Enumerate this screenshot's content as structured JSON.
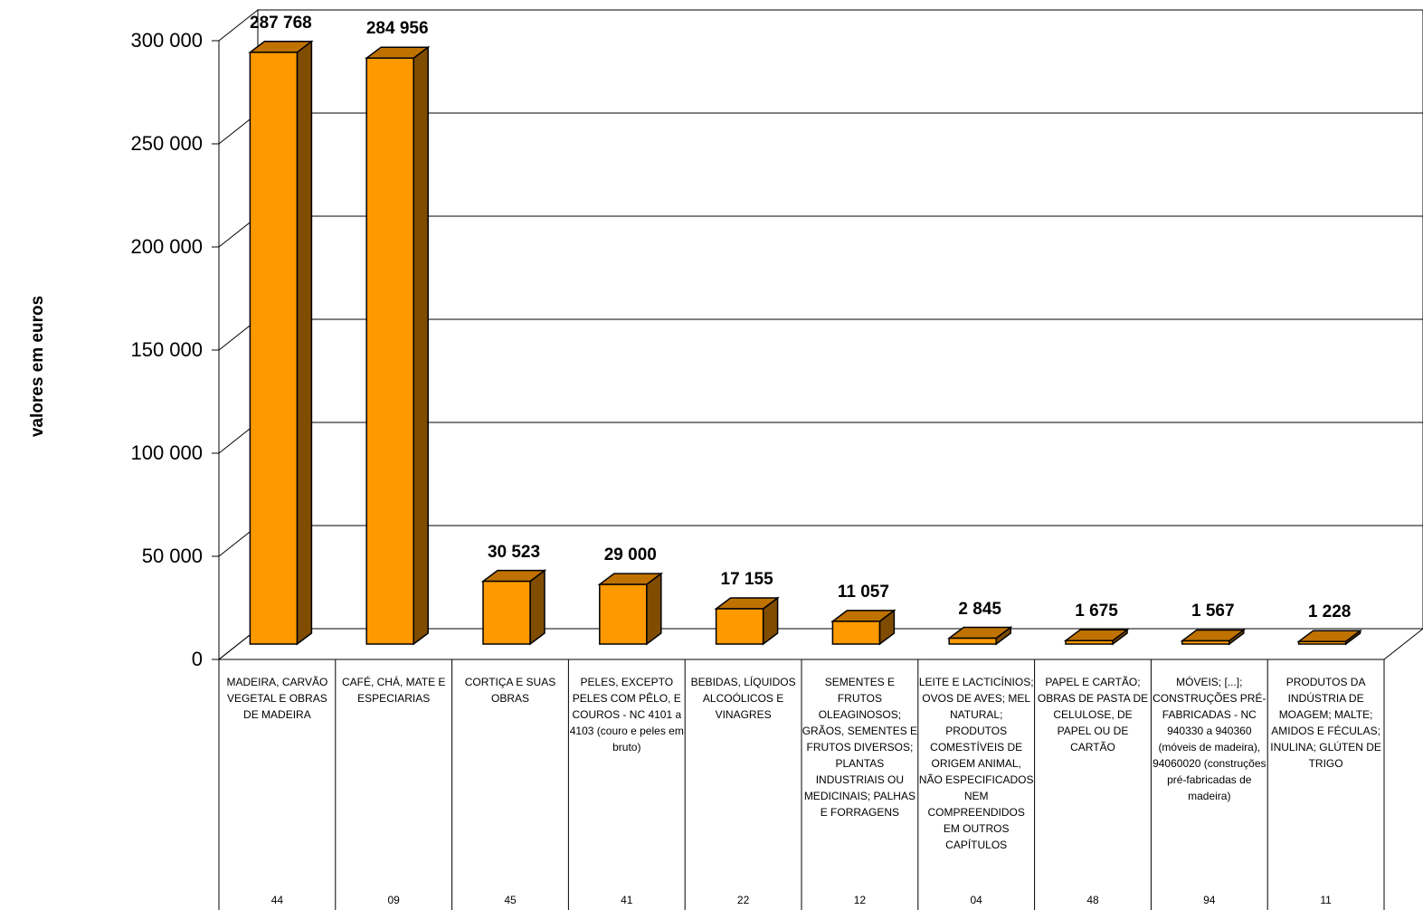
{
  "chart_data": {
    "type": "bar",
    "title": "",
    "xlabel": "",
    "ylabel": "valores em euros",
    "ylim": [
      0,
      300000
    ],
    "yticks": [
      "0",
      "50 000",
      "100 000",
      "150 000",
      "200 000",
      "250 000",
      "300 000"
    ],
    "ytick_values": [
      0,
      50000,
      100000,
      150000,
      200000,
      250000,
      300000
    ],
    "grid": true,
    "legend": "none",
    "categories": [
      "MADEIRA, CARVÃO VEGETAL E OBRAS DE MADEIRA",
      "CAFÉ, CHÁ, MATE E ESPECIARIAS",
      "CORTIÇA E SUAS OBRAS",
      "PELES, EXCEPTO PELES COM PÊLO, E COUROS - NC 4101 a 4103 (couro e peles em bruto)",
      "BEBIDAS, LÍQUIDOS ALCOÓLICOS E VINAGRES",
      "SEMENTES E FRUTOS OLEAGINOSOS; GRÃOS, SEMENTES E FRUTOS DIVERSOS; PLANTAS INDUSTRIAIS OU MEDICINAIS; PALHAS E FORRAGENS",
      "LEITE E LACTICÍNIOS; OVOS DE AVES; MEL NATURAL; PRODUTOS COMESTÍVEIS DE ORIGEM ANIMAL, NÃO ESPECIFICADOS NEM COMPREENDIDOS EM OUTROS CAPÍTULOS",
      "PAPEL E CARTÃO; OBRAS DE PASTA DE CELULOSE, DE PAPEL OU DE CARTÃO",
      "MÓVEIS; [...]; CONSTRUÇÕES PRÉ-FABRICADAS - NC 940330 a 940360 (móveis de madeira), 94060020 (construções pré-fabricadas de madeira)",
      "PRODUTOS DA INDÚSTRIA DE MOAGEM; MALTE; AMIDOS E FÉCULAS; INULINA; GLÚTEN DE TRIGO"
    ],
    "codes": [
      "44",
      "09",
      "45",
      "41",
      "22",
      "12",
      "04",
      "48",
      "94",
      "11"
    ],
    "values": [
      287768,
      284956,
      30523,
      29000,
      17155,
      11057,
      2845,
      1675,
      1567,
      1228
    ],
    "value_labels": [
      "287 768",
      "284 956",
      "30 523",
      "29 000",
      "17 155",
      "11 057",
      "2 845",
      "1 675",
      "1 567",
      "1 228"
    ],
    "colors": {
      "bar_front": "#FF9900",
      "bar_side": "#7F4C00",
      "bar_top": "#BF7200",
      "outline": "#000000"
    }
  }
}
